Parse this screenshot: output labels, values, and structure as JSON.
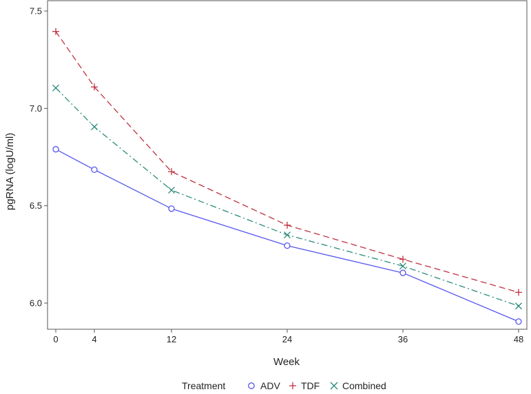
{
  "chart_data": {
    "type": "line",
    "title": "",
    "xlabel": "Week",
    "ylabel": "pgRNA (logU/ml)",
    "x": [
      0,
      4,
      12,
      24,
      36,
      48
    ],
    "xticks": [
      "0",
      "4",
      "12",
      "24",
      "36",
      "48"
    ],
    "yticks": [
      "6.0",
      "6.5",
      "7.0",
      "7.5"
    ],
    "xlim": [
      0,
      48
    ],
    "ylim": [
      5.88,
      7.5
    ],
    "grid": false,
    "legend_title": "Treatment",
    "legend_position": "bottom",
    "series": [
      {
        "name": "ADV",
        "values": [
          6.79,
          6.685,
          6.485,
          6.295,
          6.155,
          5.905
        ],
        "color": "#5555ee",
        "marker": "circle",
        "line_style": "solid"
      },
      {
        "name": "TDF",
        "values": [
          7.395,
          7.11,
          6.675,
          6.4,
          6.225,
          6.055
        ],
        "color": "#c03040",
        "marker": "plus",
        "line_style": "dashed"
      },
      {
        "name": "Combined",
        "values": [
          7.105,
          6.905,
          6.58,
          6.35,
          6.19,
          5.985
        ],
        "color": "#2a8a7a",
        "marker": "x",
        "line_style": "dashdot"
      }
    ]
  }
}
